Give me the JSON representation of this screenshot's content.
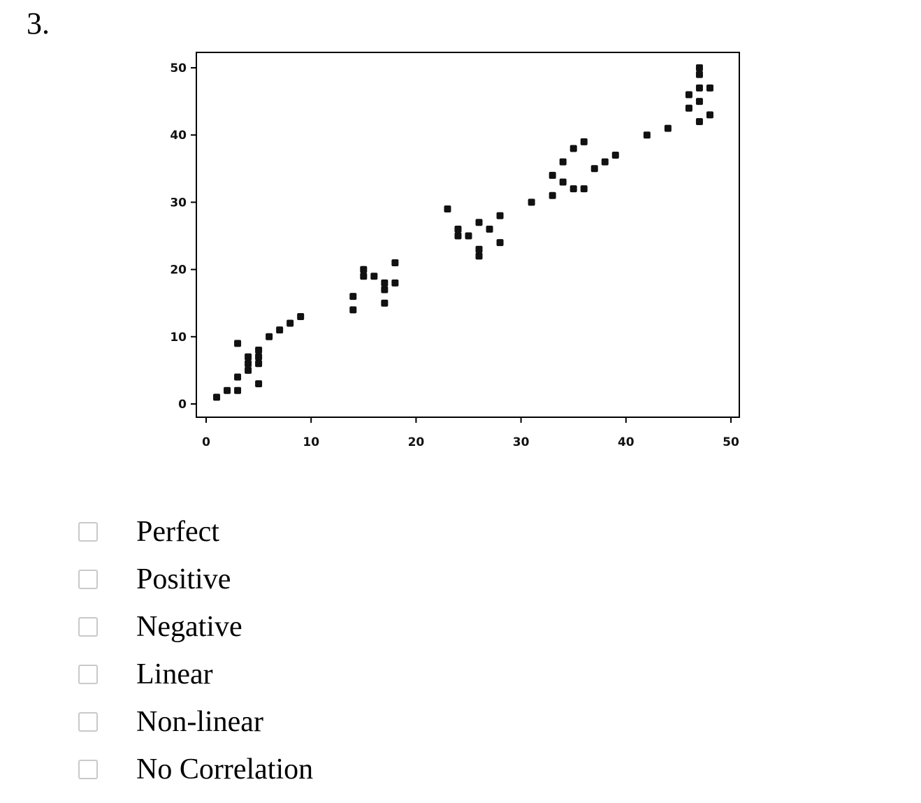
{
  "question": {
    "number": "3."
  },
  "chart_data": {
    "type": "scatter",
    "title": "",
    "xlabel": "",
    "ylabel": "",
    "xlim": [
      0,
      50
    ],
    "ylim": [
      0,
      50
    ],
    "xticks": [
      0,
      10,
      20,
      30,
      40,
      50
    ],
    "yticks": [
      0,
      10,
      20,
      30,
      40,
      50
    ],
    "grid": false,
    "legend": false,
    "marker_color": "#111111",
    "frame_color": "#000000",
    "points": [
      [
        1,
        1
      ],
      [
        2,
        2
      ],
      [
        3,
        2
      ],
      [
        3,
        4
      ],
      [
        3,
        9
      ],
      [
        4,
        5
      ],
      [
        4,
        6
      ],
      [
        4,
        7
      ],
      [
        5,
        3
      ],
      [
        5,
        6
      ],
      [
        5,
        7
      ],
      [
        5,
        8
      ],
      [
        6,
        10
      ],
      [
        7,
        11
      ],
      [
        8,
        12
      ],
      [
        9,
        13
      ],
      [
        14,
        14
      ],
      [
        14,
        16
      ],
      [
        15,
        19
      ],
      [
        15,
        20
      ],
      [
        16,
        19
      ],
      [
        17,
        15
      ],
      [
        17,
        17
      ],
      [
        17,
        18
      ],
      [
        18,
        18
      ],
      [
        18,
        21
      ],
      [
        23,
        29
      ],
      [
        24,
        25
      ],
      [
        24,
        26
      ],
      [
        25,
        25
      ],
      [
        26,
        22
      ],
      [
        26,
        23
      ],
      [
        26,
        27
      ],
      [
        27,
        26
      ],
      [
        28,
        24
      ],
      [
        28,
        28
      ],
      [
        31,
        30
      ],
      [
        33,
        31
      ],
      [
        33,
        34
      ],
      [
        34,
        33
      ],
      [
        34,
        36
      ],
      [
        35,
        32
      ],
      [
        35,
        38
      ],
      [
        36,
        32
      ],
      [
        36,
        39
      ],
      [
        37,
        35
      ],
      [
        38,
        36
      ],
      [
        39,
        37
      ],
      [
        42,
        40
      ],
      [
        44,
        41
      ],
      [
        46,
        44
      ],
      [
        46,
        46
      ],
      [
        47,
        42
      ],
      [
        47,
        45
      ],
      [
        47,
        47
      ],
      [
        47,
        49
      ],
      [
        47,
        50
      ],
      [
        48,
        43
      ],
      [
        48,
        47
      ]
    ]
  },
  "options": [
    {
      "label": "Perfect"
    },
    {
      "label": "Positive"
    },
    {
      "label": "Negative"
    },
    {
      "label": "Linear"
    },
    {
      "label": "Non-linear"
    },
    {
      "label": "No Correlation"
    }
  ]
}
